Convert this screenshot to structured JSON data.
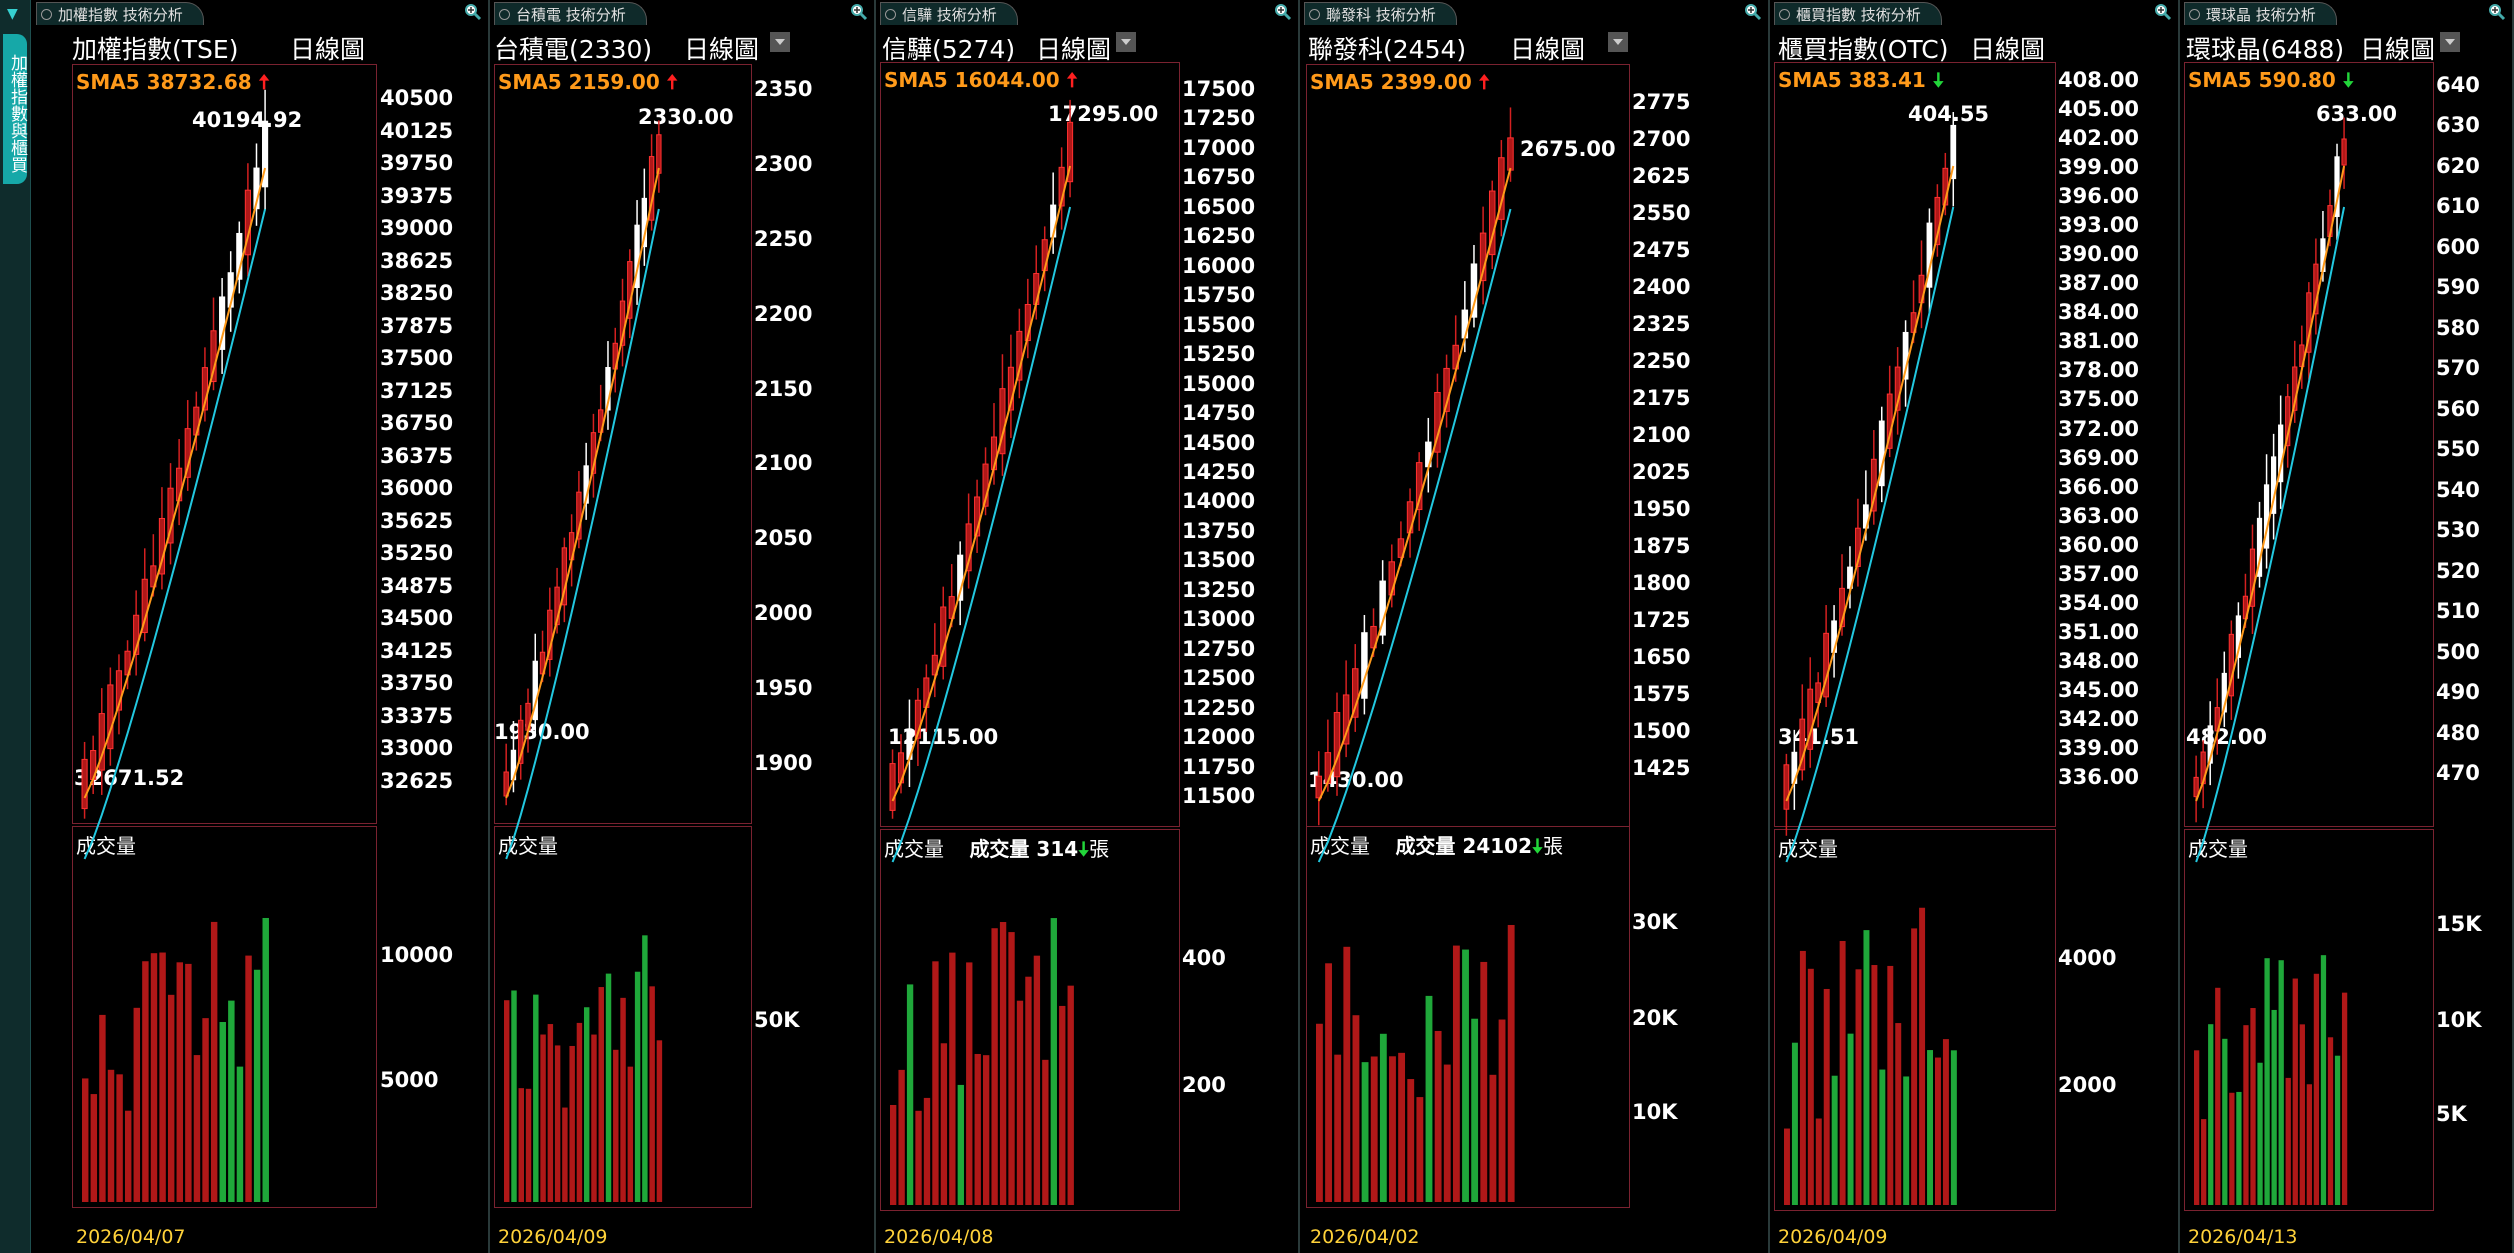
{
  "sidebar": {
    "tab_label": "加權指數與櫃買"
  },
  "panels": [
    {
      "tab": "加權指數 技術分析",
      "title": "加權指數(TSE)",
      "period": "日線圖",
      "sma_label": "SMA5 38732.68",
      "sma_dir": "up",
      "high": "40194.92",
      "low": "32671.52",
      "axis": [
        "40500",
        "40125",
        "39750",
        "39375",
        "39000",
        "38625",
        "38250",
        "37875",
        "37500",
        "37125",
        "36750",
        "36375",
        "36000",
        "35625",
        "35250",
        "34875",
        "34500",
        "34125",
        "33750",
        "33375",
        "33000",
        "32625"
      ],
      "vol_label": "成交量",
      "vol_value": "",
      "vol_dir": "",
      "vol_unit": "",
      "vol_axis": [
        "10000",
        "5000"
      ],
      "date": "2026/04/07"
    },
    {
      "tab": "台積電 技術分析",
      "title": "台積電(2330)",
      "period": "日線圖",
      "sma_label": "SMA5 2159.00",
      "sma_dir": "up",
      "high": "2330.00",
      "low": "1930.00",
      "axis": [
        "2350",
        "2300",
        "2250",
        "2200",
        "2150",
        "2100",
        "2050",
        "2000",
        "1950",
        "1900"
      ],
      "vol_label": "成交量",
      "vol_value": "",
      "vol_dir": "",
      "vol_unit": "",
      "vol_axis": [
        "50K"
      ],
      "date": "2026/04/09"
    },
    {
      "tab": "信驊 技術分析",
      "title": "信驊(5274)",
      "period": "日線圖",
      "sma_label": "SMA5 16044.00",
      "sma_dir": "up",
      "high": "17295.00",
      "low": "12115.00",
      "axis": [
        "17500",
        "17250",
        "17000",
        "16750",
        "16500",
        "16250",
        "16000",
        "15750",
        "15500",
        "15250",
        "15000",
        "14750",
        "14500",
        "14250",
        "14000",
        "13750",
        "13500",
        "13250",
        "13000",
        "12750",
        "12500",
        "12250",
        "12000",
        "11750",
        "11500"
      ],
      "vol_label": "成交量",
      "vol_value": "成交量 314",
      "vol_dir": "down",
      "vol_unit": "張",
      "vol_axis": [
        "400",
        "200"
      ],
      "date": "2026/04/08"
    },
    {
      "tab": "聯發科 技術分析",
      "title": "聯發科(2454)",
      "period": "日線圖",
      "sma_label": "SMA5 2399.00",
      "sma_dir": "up",
      "high": "2675.00",
      "low": "1430.00",
      "axis": [
        "2775",
        "2700",
        "2625",
        "2550",
        "2475",
        "2400",
        "2325",
        "2250",
        "2175",
        "2100",
        "2025",
        "1950",
        "1875",
        "1800",
        "1725",
        "1650",
        "1575",
        "1500",
        "1425"
      ],
      "vol_label": "成交量",
      "vol_value": "成交量 24102",
      "vol_dir": "down",
      "vol_unit": "張",
      "vol_axis": [
        "30K",
        "20K",
        "10K"
      ],
      "date": "2026/04/02"
    },
    {
      "tab": "櫃買指數 技術分析",
      "title": "櫃買指數(OTC)",
      "period": "日線圖",
      "sma_label": "SMA5 383.41",
      "sma_dir": "down",
      "high": "404.55",
      "low": "341.51",
      "axis": [
        "408.00",
        "405.00",
        "402.00",
        "399.00",
        "396.00",
        "393.00",
        "390.00",
        "387.00",
        "384.00",
        "381.00",
        "378.00",
        "375.00",
        "372.00",
        "369.00",
        "366.00",
        "363.00",
        "360.00",
        "357.00",
        "354.00",
        "351.00",
        "348.00",
        "345.00",
        "342.00",
        "339.00",
        "336.00"
      ],
      "vol_label": "成交量",
      "vol_value": "",
      "vol_dir": "",
      "vol_unit": "",
      "vol_axis": [
        "4000",
        "2000"
      ],
      "date": "2026/04/09"
    },
    {
      "tab": "環球晶 技術分析",
      "title": "環球晶(6488)",
      "period": "日線圖",
      "sma_label": "SMA5 590.80",
      "sma_dir": "down",
      "high": "633.00",
      "low": "482.00",
      "axis": [
        "640",
        "630",
        "620",
        "610",
        "600",
        "590",
        "580",
        "570",
        "560",
        "550",
        "540",
        "530",
        "520",
        "510",
        "500",
        "490",
        "480",
        "470"
      ],
      "vol_label": "成交量",
      "vol_value": "",
      "vol_dir": "",
      "vol_unit": "",
      "vol_axis": [
        "15K",
        "10K",
        "5K"
      ],
      "date": "2026/04/13"
    }
  ],
  "colors": {
    "up_candle": "#b01818",
    "down_candle": "#ffffff",
    "ma5": "#ff9a1a",
    "ma20": "#22c8e0",
    "vol_up": "#b01818",
    "vol_down": "#1fa83a",
    "date": "#ffd23a"
  }
}
